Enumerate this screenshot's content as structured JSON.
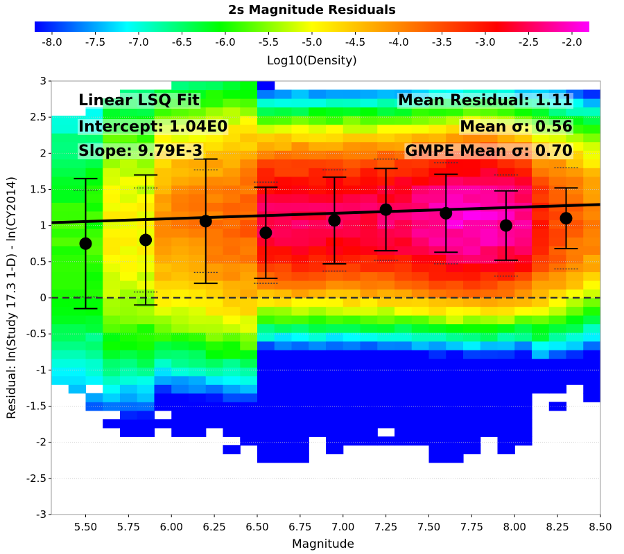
{
  "chart_data": {
    "type": "heatmap",
    "title": "2s Magnitude Residuals",
    "xlabel": "Magnitude",
    "ylabel": "Residual: ln(Study 17.3 1-D) - ln(CY2014)",
    "xlim": [
      5.3,
      8.5
    ],
    "ylim": [
      -3,
      3
    ],
    "x_ticks": [
      "5.50",
      "5.75",
      "6.00",
      "6.25",
      "6.50",
      "6.75",
      "7.00",
      "7.25",
      "7.50",
      "7.75",
      "8.00",
      "8.25",
      "8.50"
    ],
    "y_ticks": [
      "3",
      "2.5",
      "2",
      "1.5",
      "1",
      "0.5",
      "0",
      "-0.5",
      "-1",
      "-1.5",
      "-2",
      "-2.5",
      "-3"
    ],
    "colorbar": {
      "label": "Log10(Density)",
      "ticks": [
        "-8.0",
        "-7.5",
        "-7.0",
        "-6.5",
        "-6.0",
        "-5.5",
        "-5.0",
        "-4.5",
        "-4.0",
        "-3.5",
        "-3.0",
        "-2.5",
        "-2.0"
      ],
      "range": [
        -8.2,
        -1.8
      ],
      "colors": [
        "#0000ff",
        "#00ffff",
        "#00ff00",
        "#ffff00",
        "#ff8000",
        "#ff0000",
        "#ff00ff"
      ]
    },
    "grid": true,
    "bins": {
      "mag_min": 5.3,
      "mag_step": 0.1,
      "mag_bins": 32,
      "res_min": -3.0,
      "res_step": 0.12,
      "res_bins": 50
    },
    "binned_means": {
      "x": [
        5.5,
        5.85,
        6.2,
        6.55,
        6.95,
        7.25,
        7.6,
        7.95,
        8.3
      ],
      "mean": [
        0.75,
        0.8,
        1.06,
        0.9,
        1.07,
        1.22,
        1.17,
        1.0,
        1.1
      ],
      "sigma": [
        0.9,
        0.9,
        0.86,
        0.63,
        0.6,
        0.57,
        0.54,
        0.48,
        0.42
      ],
      "gmpe_sigma": [
        0.74,
        0.72,
        0.71,
        0.7,
        0.7,
        0.7,
        0.7,
        0.7,
        0.7
      ]
    },
    "fit_line": {
      "intercept": 1.04,
      "slope": 0.00979,
      "x0": 1.0
    },
    "zero_line": 0,
    "annotations": {
      "fit_title": "Linear LSQ Fit",
      "intercept": "Intercept: 1.04E0",
      "slope": "Slope: 9.79E-3",
      "mean_residual": "Mean Residual: 1.11",
      "mean_sigma": "Mean σ: 0.56",
      "gmpe_sigma": "GMPE Mean σ: 0.70"
    }
  }
}
